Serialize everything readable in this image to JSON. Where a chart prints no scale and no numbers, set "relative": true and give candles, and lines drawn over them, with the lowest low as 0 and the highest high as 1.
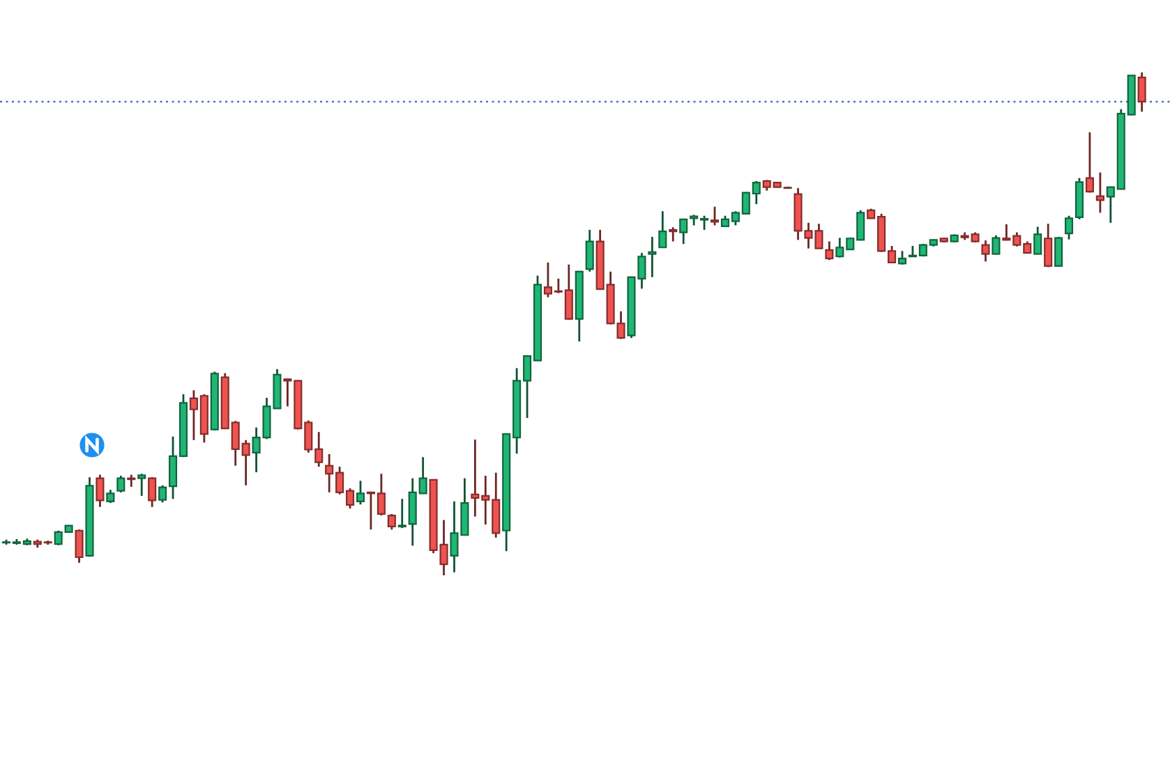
{
  "chart_data": {
    "type": "candlestick",
    "relative": true,
    "categories": [
      null,
      null,
      null,
      null,
      null,
      null,
      null,
      null,
      null,
      null,
      null,
      null,
      null,
      null,
      null,
      null,
      null,
      null,
      null,
      null,
      null,
      null,
      null,
      null,
      null,
      null,
      null,
      null,
      null,
      null,
      null,
      null,
      null,
      null,
      null,
      null,
      null,
      null,
      null,
      null,
      null,
      null,
      null,
      null,
      null,
      null,
      null,
      null,
      null,
      null,
      null,
      null,
      null,
      null,
      null,
      null,
      null,
      null,
      null,
      null,
      null,
      null,
      null,
      null,
      null,
      null,
      null,
      null,
      null,
      null,
      null,
      null,
      null,
      null,
      null,
      null,
      null,
      null,
      null,
      null,
      null,
      null,
      null,
      null,
      null,
      null,
      null,
      null,
      null,
      null,
      null,
      null,
      null,
      null,
      null,
      null,
      null,
      null,
      null,
      null,
      null,
      null,
      null,
      null,
      null,
      null,
      null,
      null,
      null,
      null
    ],
    "ohlc": [
      [
        0.065,
        0.071,
        0.061,
        0.066
      ],
      [
        0.064,
        0.072,
        0.061,
        0.066
      ],
      [
        0.062,
        0.073,
        0.06,
        0.068
      ],
      [
        0.067,
        0.071,
        0.055,
        0.062
      ],
      [
        0.066,
        0.069,
        0.061,
        0.065
      ],
      [
        0.062,
        0.089,
        0.06,
        0.086
      ],
      [
        0.086,
        0.1,
        0.085,
        0.099
      ],
      [
        0.089,
        0.091,
        0.025,
        0.036
      ],
      [
        0.039,
        0.195,
        0.037,
        0.178
      ],
      [
        0.193,
        0.2,
        0.136,
        0.149
      ],
      [
        0.147,
        0.17,
        0.144,
        0.163
      ],
      [
        0.168,
        0.198,
        0.165,
        0.193
      ],
      [
        0.193,
        0.2,
        0.176,
        0.191
      ],
      [
        0.193,
        0.202,
        0.158,
        0.199
      ],
      [
        0.193,
        0.195,
        0.136,
        0.149
      ],
      [
        0.15,
        0.179,
        0.145,
        0.175
      ],
      [
        0.177,
        0.276,
        0.152,
        0.237
      ],
      [
        0.237,
        0.36,
        0.235,
        0.343
      ],
      [
        0.352,
        0.368,
        0.269,
        0.33
      ],
      [
        0.357,
        0.36,
        0.264,
        0.281
      ],
      [
        0.29,
        0.405,
        0.288,
        0.401
      ],
      [
        0.394,
        0.402,
        0.291,
        0.292
      ],
      [
        0.304,
        0.307,
        0.218,
        0.251
      ],
      [
        0.262,
        0.269,
        0.179,
        0.239
      ],
      [
        0.244,
        0.294,
        0.205,
        0.274
      ],
      [
        0.274,
        0.353,
        0.271,
        0.336
      ],
      [
        0.332,
        0.41,
        0.331,
        0.399
      ],
      [
        0.39,
        0.391,
        0.336,
        0.387
      ],
      [
        0.387,
        0.388,
        0.29,
        0.292
      ],
      [
        0.304,
        0.308,
        0.244,
        0.25
      ],
      [
        0.251,
        0.285,
        0.216,
        0.225
      ],
      [
        0.218,
        0.241,
        0.165,
        0.202
      ],
      [
        0.204,
        0.216,
        0.161,
        0.165
      ],
      [
        0.168,
        0.173,
        0.133,
        0.14
      ],
      [
        0.147,
        0.188,
        0.141,
        0.163
      ],
      [
        0.165,
        0.166,
        0.091,
        0.163
      ],
      [
        0.163,
        0.202,
        0.119,
        0.122
      ],
      [
        0.119,
        0.122,
        0.091,
        0.097
      ],
      [
        0.097,
        0.152,
        0.094,
        0.099
      ],
      [
        0.102,
        0.193,
        0.059,
        0.165
      ],
      [
        0.163,
        0.235,
        0.162,
        0.193
      ],
      [
        0.19,
        0.191,
        0.044,
        0.05
      ],
      [
        0.061,
        0.11,
        0,
        0.022
      ],
      [
        0.039,
        0.147,
        0.006,
        0.084
      ],
      [
        0.08,
        0.193,
        0.079,
        0.144
      ],
      [
        0.161,
        0.27,
        0.117,
        0.154
      ],
      [
        0.158,
        0.198,
        0.101,
        0.15
      ],
      [
        0.15,
        0.204,
        0.075,
        0.084
      ],
      [
        0.089,
        0.281,
        0.048,
        0.281
      ],
      [
        0.274,
        0.412,
        0.242,
        0.387
      ],
      [
        0.387,
        0.436,
        0.313,
        0.436
      ],
      [
        0.427,
        0.596,
        0.427,
        0.578
      ],
      [
        0.573,
        0.622,
        0.553,
        0.56
      ],
      [
        0.565,
        0.59,
        0.561,
        0.564
      ],
      [
        0.567,
        0.618,
        0.508,
        0.51
      ],
      [
        0.51,
        0.604,
        0.465,
        0.604
      ],
      [
        0.609,
        0.687,
        0.604,
        0.664
      ],
      [
        0.664,
        0.687,
        0.568,
        0.569
      ],
      [
        0.578,
        0.604,
        0.499,
        0.501
      ],
      [
        0.501,
        0.525,
        0.47,
        0.472
      ],
      [
        0.477,
        0.593,
        0.472,
        0.593
      ],
      [
        0.59,
        0.641,
        0.57,
        0.634
      ],
      [
        0.639,
        0.673,
        0.593,
        0.643
      ],
      [
        0.652,
        0.724,
        0.651,
        0.684
      ],
      [
        0.687,
        0.692,
        0.664,
        0.684
      ],
      [
        0.682,
        0.708,
        0.659,
        0.708
      ],
      [
        0.71,
        0.717,
        0.696,
        0.714
      ],
      [
        0.707,
        0.715,
        0.687,
        0.709
      ],
      [
        0.706,
        0.733,
        0.696,
        0.703
      ],
      [
        0.694,
        0.715,
        0.693,
        0.708
      ],
      [
        0.704,
        0.724,
        0.696,
        0.721
      ],
      [
        0.719,
        0.762,
        0.719,
        0.761
      ],
      [
        0.759,
        0.784,
        0.738,
        0.781
      ],
      [
        0.784,
        0.786,
        0.765,
        0.772
      ],
      [
        0.781,
        0.782,
        0.771,
        0.772
      ],
      [
        0.771,
        0.773,
        0.769,
        0.77
      ],
      [
        0.758,
        0.77,
        0.667,
        0.685
      ],
      [
        0.685,
        0.701,
        0.65,
        0.671
      ],
      [
        0.685,
        0.699,
        0.65,
        0.65
      ],
      [
        0.647,
        0.664,
        0.627,
        0.63
      ],
      [
        0.634,
        0.671,
        0.632,
        0.652
      ],
      [
        0.648,
        0.671,
        0.647,
        0.67
      ],
      [
        0.667,
        0.726,
        0.666,
        0.721
      ],
      [
        0.726,
        0.729,
        0.709,
        0.71
      ],
      [
        0.713,
        0.719,
        0.643,
        0.645
      ],
      [
        0.645,
        0.655,
        0.622,
        0.622
      ],
      [
        0.62,
        0.645,
        0.618,
        0.63
      ],
      [
        0.634,
        0.655,
        0.634,
        0.636
      ],
      [
        0.636,
        0.659,
        0.634,
        0.657
      ],
      [
        0.657,
        0.668,
        0.654,
        0.667
      ],
      [
        0.67,
        0.671,
        0.662,
        0.664
      ],
      [
        0.664,
        0.678,
        0.662,
        0.676
      ],
      [
        0.675,
        0.682,
        0.667,
        0.672
      ],
      [
        0.678,
        0.682,
        0.662,
        0.664
      ],
      [
        0.657,
        0.666,
        0.624,
        0.639
      ],
      [
        0.639,
        0.676,
        0.638,
        0.671
      ],
      [
        0.67,
        0.698,
        0.666,
        0.667
      ],
      [
        0.675,
        0.682,
        0.654,
        0.657
      ],
      [
        0.659,
        0.664,
        0.64,
        0.641
      ],
      [
        0.639,
        0.693,
        0.639,
        0.678
      ],
      [
        0.67,
        0.699,
        0.613,
        0.615
      ],
      [
        0.615,
        0.673,
        0.614,
        0.671
      ],
      [
        0.68,
        0.715,
        0.668,
        0.71
      ],
      [
        0.712,
        0.79,
        0.708,
        0.782
      ],
      [
        0.79,
        0.881,
        0.761,
        0.763
      ],
      [
        0.754,
        0.801,
        0.721,
        0.746
      ],
      [
        0.753,
        0.772,
        0.701,
        0.772
      ],
      [
        0.768,
        0.927,
        0.767,
        0.918
      ],
      [
        0.916,
        0.994,
        0.915,
        0.994
      ],
      [
        0.99,
        1,
        0.922,
        0.942
      ]
    ],
    "colors": [
      "#20b674",
      "#20b674",
      "#20b674",
      "#ef5350",
      "#ef5350",
      "#20b674",
      "#20b674",
      "#ef5350",
      "#20b674",
      "#ef5350",
      "#20b674",
      "#20b674",
      "#ef5350",
      "#20b674",
      "#ef5350",
      "#20b674",
      "#20b674",
      "#20b674",
      "#ef5350",
      "#ef5350",
      "#20b674",
      "#ef5350",
      "#ef5350",
      "#ef5350",
      "#20b674",
      "#20b674",
      "#20b674",
      "#ef5350",
      "#ef5350",
      "#ef5350",
      "#ef5350",
      "#ef5350",
      "#ef5350",
      "#ef5350",
      "#20b674",
      "#ef5350",
      "#ef5350",
      "#ef5350",
      "#20b674",
      "#20b674",
      "#20b674",
      "#ef5350",
      "#ef5350",
      "#20b674",
      "#20b674",
      "#ef5350",
      "#ef5350",
      "#ef5350",
      "#20b674",
      "#20b674",
      "#20b674",
      "#20b674",
      "#ef5350",
      "#ef5350",
      "#ef5350",
      "#20b674",
      "#20b674",
      "#ef5350",
      "#ef5350",
      "#ef5350",
      "#20b674",
      "#20b674",
      "#20b674",
      "#20b674",
      "#ef5350",
      "#20b674",
      "#20b674",
      "#20b674",
      "#ef5350",
      "#20b674",
      "#20b674",
      "#20b674",
      "#20b674",
      "#ef5350",
      "#ef5350",
      "#ef5350",
      "#ef5350",
      "#ef5350",
      "#ef5350",
      "#ef5350",
      "#20b674",
      "#20b674",
      "#20b674",
      "#ef5350",
      "#ef5350",
      "#ef5350",
      "#20b674",
      "#20b674",
      "#20b674",
      "#20b674",
      "#ef5350",
      "#20b674",
      "#ef5350",
      "#ef5350",
      "#ef5350",
      "#20b674",
      "#ef5350",
      "#ef5350",
      "#ef5350",
      "#20b674",
      "#ef5350",
      "#20b674",
      "#20b674",
      "#20b674",
      "#ef5350",
      "#ef5350",
      "#20b674",
      "#20b674",
      "#20b674",
      "#ef5350"
    ],
    "ref_lines": [
      {
        "axis": "y",
        "value": 0.942,
        "color": "#4a6fc8",
        "line_style": "dotted"
      }
    ]
  }
}
